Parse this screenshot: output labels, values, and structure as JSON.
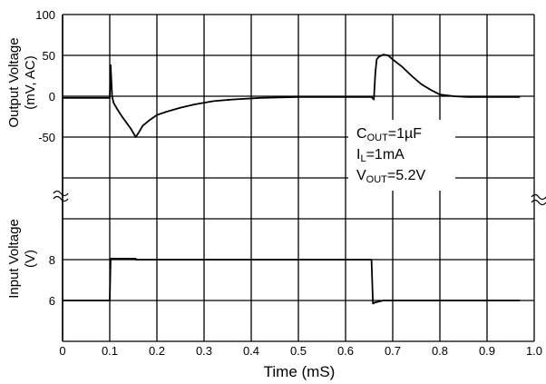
{
  "chart_data": {
    "type": "line",
    "xlabel": "Time (mS)",
    "x_ticks": [
      "0",
      "0.1",
      "0.2",
      "0.3",
      "0.4",
      "0.5",
      "0.6",
      "0.7",
      "0.8",
      "0.9",
      "1.0"
    ],
    "xlim": [
      0,
      1.0
    ],
    "grid": true,
    "panels": {
      "output": {
        "ylabel_line1": "Output Voltage",
        "ylabel_line2": "(mV, AC)",
        "ylim": [
          -100,
          100
        ],
        "y_ticks": [
          {
            "value": 100,
            "label": "100"
          },
          {
            "value": 50,
            "label": "50"
          },
          {
            "value": 0,
            "label": "0"
          },
          {
            "value": -50,
            "label": "-50"
          }
        ],
        "series": [
          {
            "x": [
              0.0,
              0.1,
              0.102,
              0.105,
              0.108,
              0.115,
              0.125,
              0.135,
              0.145,
              0.155,
              0.162,
              0.17,
              0.185,
              0.2,
              0.22,
              0.25,
              0.28,
              0.32,
              0.36,
              0.42,
              0.5,
              0.6,
              0.655,
              0.66,
              0.663,
              0.666,
              0.67,
              0.68,
              0.69,
              0.7,
              0.72,
              0.74,
              0.76,
              0.78,
              0.8,
              0.83,
              0.86,
              0.9,
              0.95,
              0.97
            ],
            "y": [
              -2,
              -2,
              38,
              0,
              -8,
              -15,
              -24,
              -32,
              -40,
              -50,
              -44,
              -36,
              -29,
              -23,
              -19,
              -14,
              -10,
              -6,
              -4,
              -2,
              -1,
              -1,
              -1,
              -4,
              28,
              45,
              48,
              51,
              50,
              45,
              36,
              25,
              15,
              8,
              2,
              0,
              -1,
              -1,
              -1,
              -1
            ]
          }
        ]
      },
      "input": {
        "ylabel_line1": "Input Voltage",
        "ylabel_line2": "(V)",
        "ylim": [
          4,
          10
        ],
        "y_ticks": [
          {
            "value": 8,
            "label": "8"
          },
          {
            "value": 6,
            "label": "6"
          }
        ],
        "series": [
          {
            "x": [
              0.0,
              0.1,
              0.102,
              0.155,
              0.155,
              0.655,
              0.658,
              0.662,
              0.68,
              0.97
            ],
            "y": [
              6,
              6,
              8.05,
              8.05,
              8.0,
              8.0,
              5.85,
              5.9,
              6.0,
              6.0
            ]
          }
        ]
      }
    },
    "annotations": {
      "cout": {
        "main": "C",
        "sub": "OUT",
        "rest": "=1µF"
      },
      "il": {
        "main": "I",
        "sub": "L",
        "rest": "=1mA"
      },
      "vout": {
        "main": "V",
        "sub": "OUT",
        "rest": "=5.2V"
      }
    }
  },
  "colors": {
    "line": "#000000",
    "grid": "#000000",
    "background": "#ffffff"
  }
}
